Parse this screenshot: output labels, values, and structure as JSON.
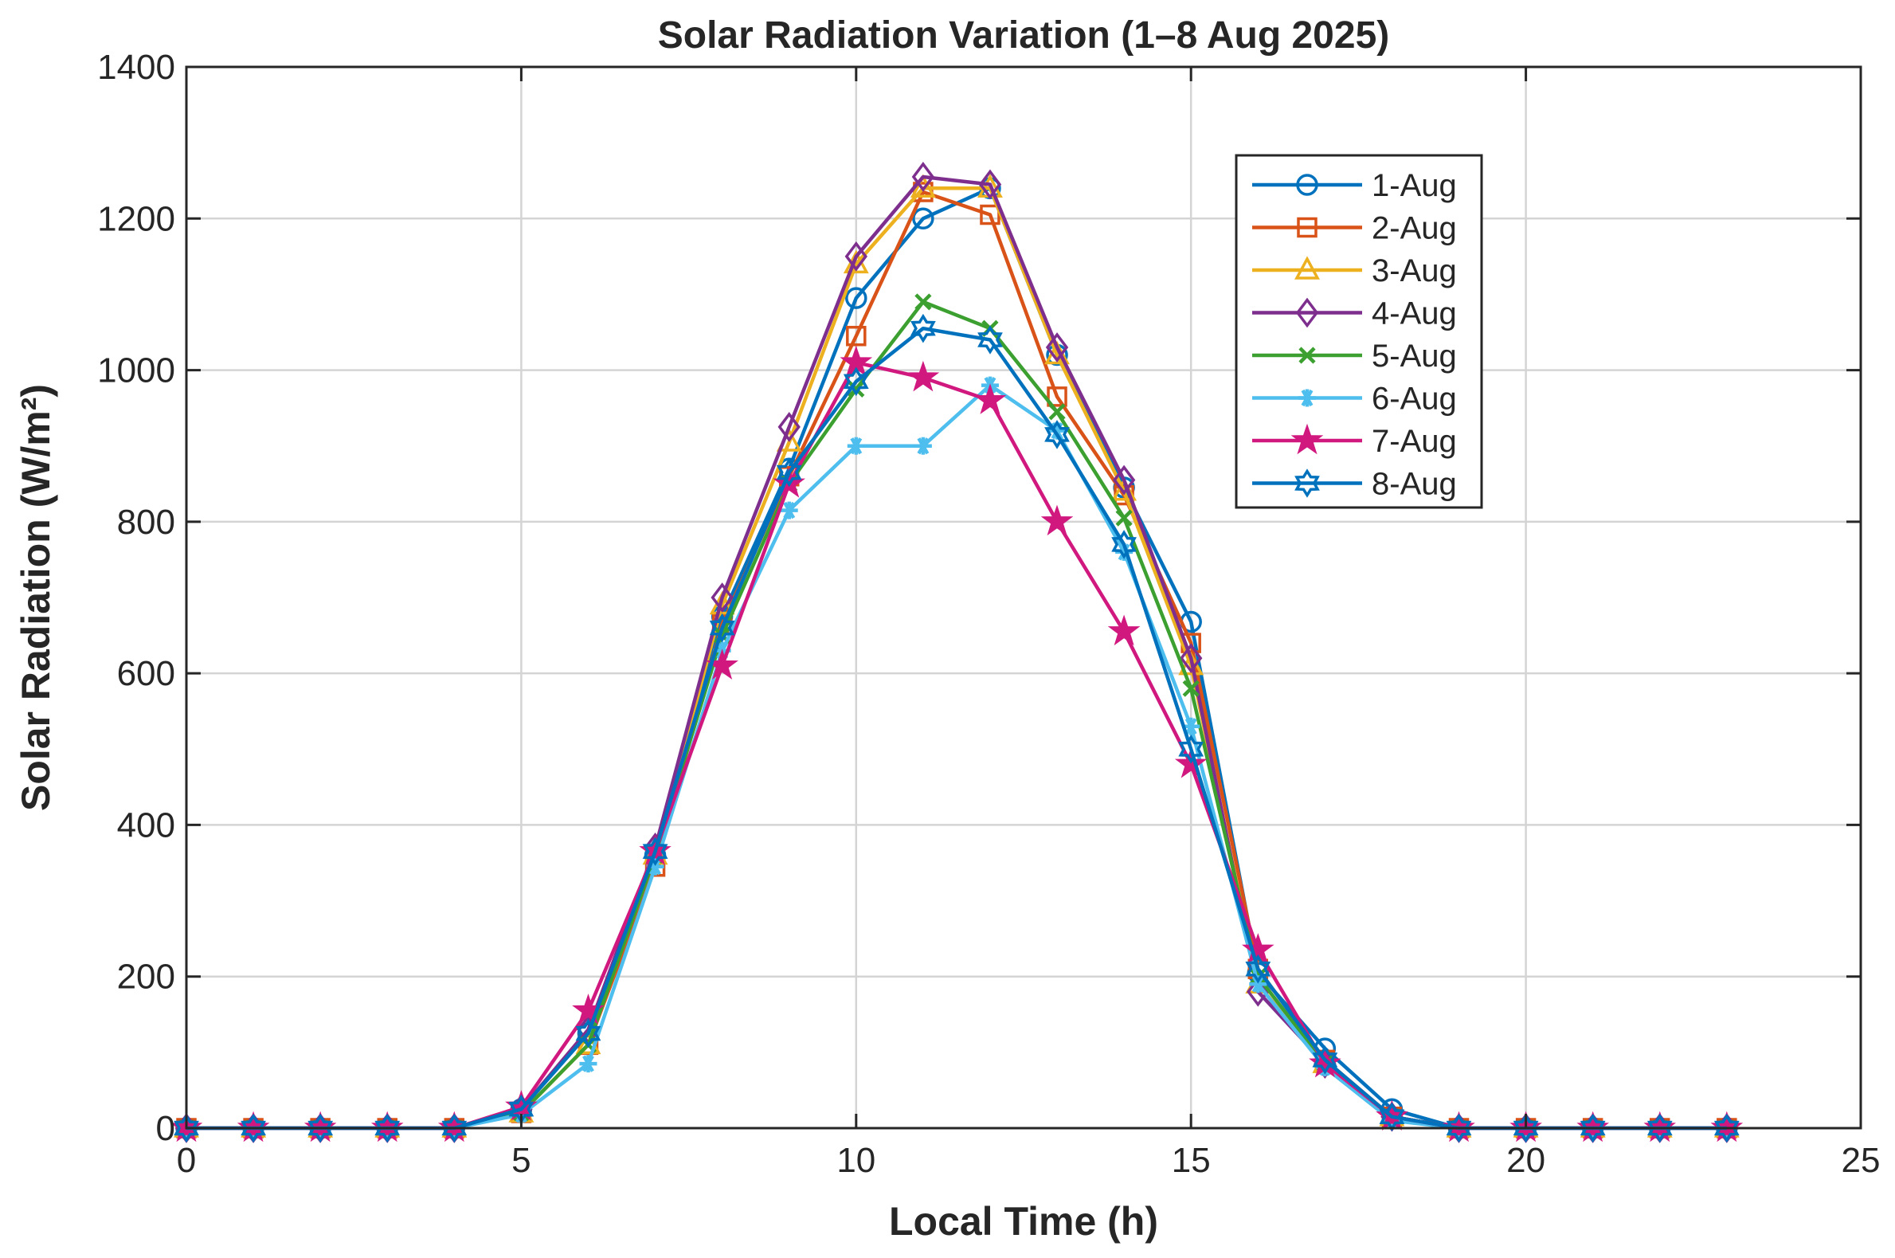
{
  "chart_data": {
    "type": "line",
    "title": "Solar Radiation Variation (1–8 Aug 2025)",
    "xlabel": "Local Time (h)",
    "ylabel": "Solar  Radiation  (W/m²)",
    "xlim": [
      0,
      25
    ],
    "ylim": [
      0,
      1400
    ],
    "xticks": [
      0,
      5,
      10,
      15,
      20,
      25
    ],
    "yticks": [
      0,
      200,
      400,
      600,
      800,
      1000,
      1200,
      1400
    ],
    "grid": true,
    "legend_position": "top-right",
    "x": [
      0,
      1,
      2,
      3,
      4,
      5,
      6,
      7,
      8,
      9,
      10,
      11,
      12,
      13,
      14,
      15,
      16,
      17,
      18,
      19,
      20,
      21,
      22,
      23
    ],
    "series": [
      {
        "name": "1-Aug",
        "color": "#0072BD",
        "marker": "circle",
        "values": [
          0,
          0,
          0,
          0,
          0,
          25,
          125,
          360,
          675,
          870,
          1095,
          1200,
          1240,
          1020,
          845,
          668,
          205,
          105,
          25,
          0,
          0,
          0,
          0,
          0
        ]
      },
      {
        "name": "2-Aug",
        "color": "#D95319",
        "marker": "square",
        "values": [
          0,
          0,
          0,
          0,
          0,
          20,
          110,
          345,
          665,
          860,
          1045,
          1235,
          1205,
          965,
          835,
          640,
          210,
          90,
          15,
          0,
          0,
          0,
          0,
          0
        ]
      },
      {
        "name": "3-Aug",
        "color": "#EDB120",
        "marker": "triangle",
        "values": [
          0,
          0,
          0,
          0,
          0,
          20,
          110,
          360,
          690,
          905,
          1140,
          1240,
          1240,
          1020,
          840,
          610,
          190,
          85,
          15,
          0,
          0,
          0,
          0,
          0
        ]
      },
      {
        "name": "4-Aug",
        "color": "#7E2F8E",
        "marker": "diamond",
        "values": [
          0,
          0,
          0,
          0,
          0,
          25,
          130,
          370,
          700,
          925,
          1150,
          1255,
          1245,
          1030,
          855,
          620,
          180,
          85,
          15,
          0,
          0,
          0,
          0,
          0
        ]
      },
      {
        "name": "5-Aug",
        "color": "#3BA02F",
        "marker": "x",
        "values": [
          0,
          0,
          0,
          0,
          0,
          20,
          110,
          360,
          650,
          850,
          975,
          1090,
          1055,
          945,
          805,
          580,
          200,
          85,
          15,
          0,
          0,
          0,
          0,
          0
        ]
      },
      {
        "name": "6-Aug",
        "color": "#4DBEEE",
        "marker": "asterisk",
        "values": [
          0,
          0,
          0,
          0,
          0,
          18,
          85,
          345,
          630,
          815,
          900,
          900,
          980,
          920,
          760,
          530,
          190,
          80,
          10,
          0,
          0,
          0,
          0,
          0
        ]
      },
      {
        "name": "7-Aug",
        "color": "#D0187F",
        "marker": "star",
        "values": [
          0,
          0,
          0,
          0,
          0,
          28,
          155,
          365,
          610,
          850,
          1010,
          990,
          960,
          800,
          655,
          480,
          235,
          85,
          15,
          0,
          0,
          0,
          0,
          0
        ]
      },
      {
        "name": "8-Aug",
        "color": "#0072BD",
        "marker": "hexagram",
        "values": [
          0,
          0,
          0,
          0,
          0,
          25,
          125,
          365,
          660,
          865,
          985,
          1055,
          1040,
          915,
          770,
          500,
          210,
          90,
          15,
          0,
          0,
          0,
          0,
          0
        ]
      }
    ]
  }
}
